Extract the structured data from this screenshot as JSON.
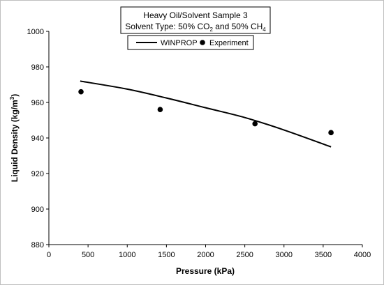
{
  "chart_data": {
    "type": "scatter",
    "title_line1": "Heavy Oil/Solvent Sample 3",
    "title_line2": {
      "prefix": "Solvent Type: 50% CO",
      "sub1": "2",
      "middle": " and 50% CH",
      "sub2": "4"
    },
    "xlabel": "Pressure (kPa)",
    "ylabel": {
      "text": "Liquid Density (kg/m",
      "sup": "3",
      "suffix": ")"
    },
    "xlim": [
      0,
      4000
    ],
    "ylim": [
      880,
      1000
    ],
    "xticks": [
      0,
      500,
      1000,
      1500,
      2000,
      2500,
      3000,
      3500,
      4000
    ],
    "yticks": [
      880,
      900,
      920,
      940,
      960,
      980,
      1000
    ],
    "grid": false,
    "legend_position": "top-center",
    "series": [
      {
        "name": "WINPROP",
        "style": "line",
        "color": "#000000",
        "points": [
          [
            400,
            972
          ],
          [
            1000,
            967.5
          ],
          [
            1500,
            962.5
          ],
          [
            2000,
            957
          ],
          [
            2500,
            951.5
          ],
          [
            3000,
            944.5
          ],
          [
            3600,
            935
          ]
        ]
      },
      {
        "name": "Experiment",
        "style": "marker",
        "color": "#000000",
        "points": [
          [
            410,
            966
          ],
          [
            1420,
            956
          ],
          [
            2630,
            948
          ],
          [
            3600,
            943
          ]
        ]
      }
    ]
  }
}
